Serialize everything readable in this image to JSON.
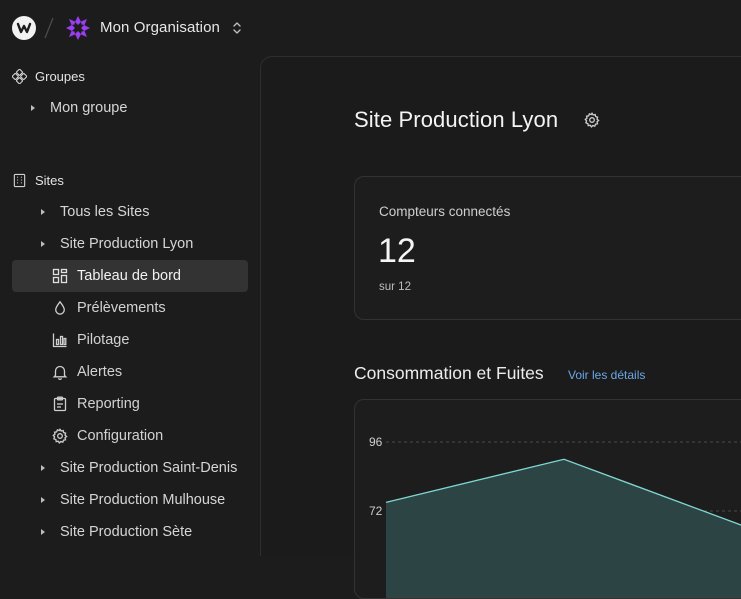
{
  "topbar": {
    "org_name": "Mon Organisation"
  },
  "sidebar": {
    "groups_label": "Groupes",
    "group_items": [
      "Mon groupe"
    ],
    "sites_label": "Sites",
    "site_items": {
      "all_sites": "Tous les Sites",
      "lyon": "Site Production Lyon",
      "saint_denis": "Site Production Saint-Denis",
      "mulhouse": "Site Production Mulhouse",
      "sete": "Site Production Sète"
    },
    "lyon_subitems": {
      "dashboard": "Tableau de bord",
      "samples": "Prélèvements",
      "steering": "Pilotage",
      "alerts": "Alertes",
      "reporting": "Reporting",
      "configuration": "Configuration"
    }
  },
  "main": {
    "title": "Site Production Lyon",
    "meters_card": {
      "label": "Compteurs connectés",
      "value": "12",
      "sub": "sur 12"
    },
    "consumption": {
      "title": "Consommation et Fuites",
      "link": "Voir les détails"
    }
  },
  "chart_data": {
    "type": "area",
    "y_ticks": [
      96,
      72
    ],
    "series": [
      {
        "values": [
          75,
          90,
          67
        ]
      }
    ],
    "ylim": [
      60,
      100
    ],
    "grid": true,
    "colors": {
      "line": "#7fd6d2",
      "fill": "#2c4443"
    }
  },
  "colors": {
    "background": "#1c1c1c",
    "active_item": "#333333",
    "link": "#6aa7e6",
    "org_icon": "#9b3df0"
  }
}
